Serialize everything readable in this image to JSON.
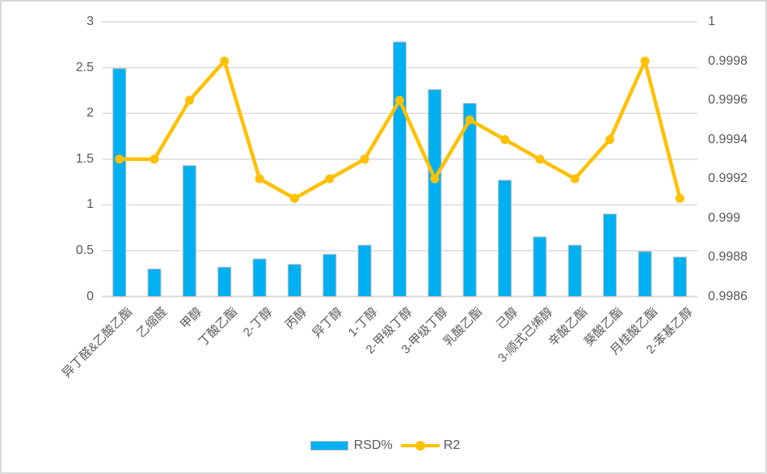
{
  "chart_data": {
    "type": "bar",
    "subtype": "bar-line-combo-dual-axis",
    "title": "",
    "xlabel": "",
    "ylabel_left": "",
    "ylabel_right": "",
    "grid": true,
    "legend_position": "bottom",
    "categories": [
      "异丁醛&乙酸乙酯",
      "乙缩醛",
      "甲醇",
      "丁酸乙酯",
      "2-丁醇",
      "丙醇",
      "异丁醇",
      "1-丁醇",
      "2-甲级丁醇",
      "3-甲级丁醇",
      "乳酸乙酯",
      "己醇",
      "3-顺式己烯醇",
      "辛酸乙酯",
      "葵酸乙酯",
      "月桂酸乙酯",
      "2-苯基乙醇"
    ],
    "series": [
      {
        "name": "RSD%",
        "type": "bar",
        "axis": "left",
        "color": "#00B0F0",
        "border_color": "#bfbfbf",
        "values": [
          2.49,
          0.3,
          1.43,
          0.32,
          0.41,
          0.35,
          0.46,
          0.56,
          2.78,
          2.26,
          2.11,
          1.27,
          0.65,
          0.56,
          0.9,
          0.49,
          0.43
        ]
      },
      {
        "name": "R2",
        "type": "line",
        "axis": "right",
        "color": "#FFC000",
        "marker": "circle",
        "values": [
          0.9993,
          0.9993,
          0.9996,
          0.9998,
          0.9992,
          0.9991,
          0.9992,
          0.9993,
          0.9996,
          0.9992,
          0.9995,
          0.9994,
          0.9993,
          0.9992,
          0.9994,
          0.9998,
          0.9991
        ]
      }
    ],
    "left_axis": {
      "min": 0,
      "max": 3,
      "step": 0.5,
      "ticks": [
        "3",
        "2.5",
        "2",
        "1.5",
        "1",
        "0.5",
        "0"
      ]
    },
    "right_axis": {
      "min": 0.9986,
      "max": 1,
      "step": 0.0002,
      "ticks": [
        "1",
        "0.9998",
        "0.9996",
        "0.9994",
        "0.9992",
        "0.999",
        "0.9988",
        "0.9986"
      ]
    }
  },
  "legend": {
    "rsd_label": "RSD%",
    "r2_label": "R2"
  },
  "colors": {
    "bar_fill": "#00B0F0",
    "bar_border": "#bfbfbf",
    "line": "#FFC000",
    "gridline": "#d9d9d9",
    "axis_text": "#595959",
    "frame_border": "#d9d9d9",
    "background": "#ffffff"
  }
}
